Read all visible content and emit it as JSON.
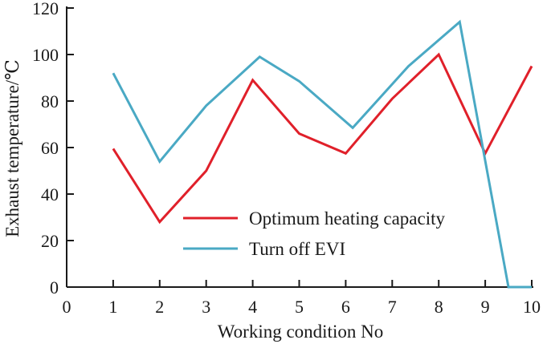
{
  "chart_data": {
    "type": "line",
    "title": "",
    "xlabel": "Working condition No",
    "ylabel": "Exhaust temperature/℃",
    "xlim": [
      0,
      10
    ],
    "ylim": [
      0,
      120
    ],
    "xticks": [
      0,
      1,
      2,
      3,
      4,
      5,
      6,
      7,
      8,
      9,
      10
    ],
    "yticks": [
      0,
      20,
      40,
      60,
      80,
      100,
      120
    ],
    "grid": false,
    "legend_position": "bottom-center",
    "series": [
      {
        "name": "Optimum heating capacity",
        "color": "#e0202a",
        "x": [
          1,
          2,
          3,
          4,
          5,
          6,
          7,
          8,
          9,
          10
        ],
        "y": [
          59.5,
          28,
          50,
          89,
          66,
          57.5,
          81,
          100,
          57.5,
          95
        ]
      },
      {
        "name": "Turn off EVI",
        "color": "#4aa9c4",
        "x": [
          1,
          2,
          3,
          4.15,
          5,
          6.15,
          7.35,
          8.45,
          9.5,
          10
        ],
        "y": [
          92,
          54,
          78,
          99,
          88.5,
          68.5,
          95,
          114,
          0,
          0
        ]
      }
    ]
  }
}
